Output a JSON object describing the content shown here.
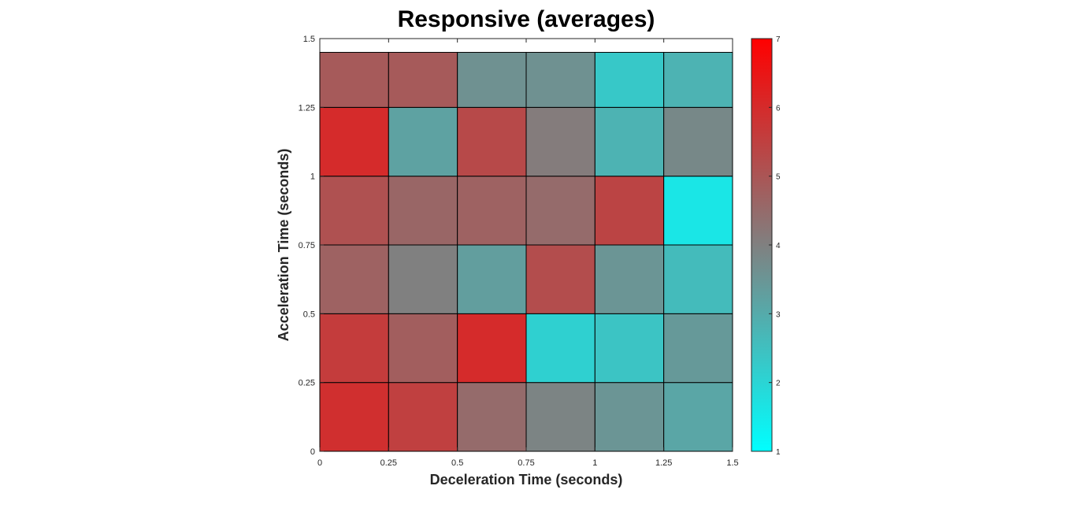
{
  "chart_data": {
    "type": "heatmap",
    "title": "Responsive (averages)",
    "xlabel": "Deceleration Time (seconds)",
    "ylabel": "Acceleration Time (seconds)",
    "xlim": [
      0,
      1.5
    ],
    "ylim": [
      0,
      1.5
    ],
    "x_edges": [
      0,
      0.25,
      0.5,
      0.75,
      1,
      1.25,
      1.5
    ],
    "y_edges": [
      0,
      0.25,
      0.5,
      0.75,
      1,
      1.25,
      1.5
    ],
    "x_ticks": [
      "0",
      "0.25",
      "0.5",
      "0.75",
      "1",
      "1.25",
      "1.5"
    ],
    "y_ticks": [
      "0",
      "0.25",
      "0.5",
      "0.75",
      "1",
      "1.25",
      "1.5"
    ],
    "note_rows": "values listed bottom row (acceleration 0-0.25) first; each row left to right by deceleration time",
    "values": [
      [
        5.9,
        5.5,
        4.5,
        3.9,
        3.5,
        3.1
      ],
      [
        5.6,
        4.8,
        6.0,
        2.1,
        2.4,
        3.4
      ],
      [
        4.7,
        4.0,
        3.3,
        5.2,
        3.5,
        2.6
      ],
      [
        5.1,
        4.6,
        4.7,
        4.5,
        5.4,
        1.6
      ],
      [
        6.0,
        3.2,
        5.3,
        4.1,
        2.8,
        3.8
      ],
      [
        4.9,
        4.9,
        3.6,
        3.6,
        2.3,
        2.8
      ]
    ],
    "colorbar": {
      "min": 1,
      "max": 7,
      "ticks": [
        "1",
        "2",
        "3",
        "4",
        "5",
        "6",
        "7"
      ],
      "colors": {
        "low": "#00ffff",
        "mid": "#808080",
        "high": "#ff0000"
      }
    },
    "grid": true,
    "cell_border_color": "#000000"
  }
}
